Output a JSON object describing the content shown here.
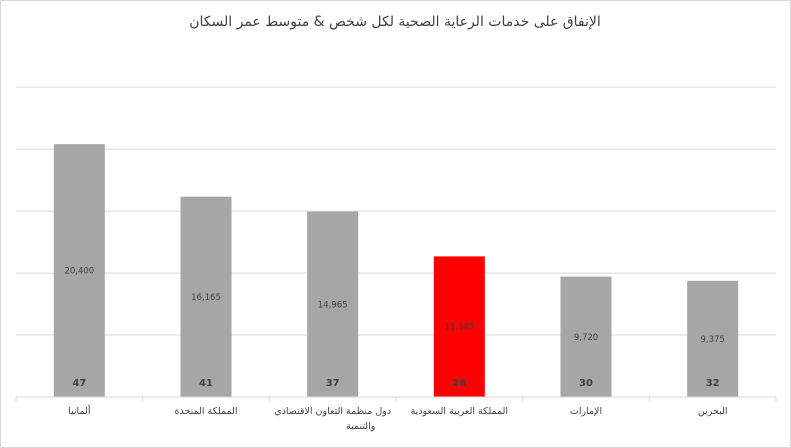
{
  "chart_data": {
    "type": "bar",
    "title": "الإنفاق على خدمات الرعاية الصحية لكل شخص & متوسط عمر السكان",
    "categories": [
      "ألمانيا",
      "المملكة المتحدة",
      "دول منظمة التعاون الاقتصادي والتنمية",
      "المملكة العربية السعودية",
      "الإمارات",
      "البحرين"
    ],
    "series": [
      {
        "values": [
          20400,
          16165,
          14965,
          11345,
          9720,
          9375
        ],
        "labels": [
          "20,400",
          "16,165",
          "14,965",
          "11,345",
          "9,720",
          "9,375"
        ]
      },
      {
        "values": [
          47,
          41,
          37,
          28,
          30,
          32
        ],
        "labels": [
          "47",
          "41",
          "37",
          "28",
          "30",
          "32"
        ]
      }
    ],
    "ylim": [
      0,
      28000
    ],
    "y_tick_step": 5000,
    "grid": true,
    "colors": {
      "bar": "#a6a6a6",
      "highlight": "#ff0000",
      "grid": "#d9d9d9",
      "text": "#404040"
    },
    "highlight_category": "المملكة العربية السعودية"
  }
}
